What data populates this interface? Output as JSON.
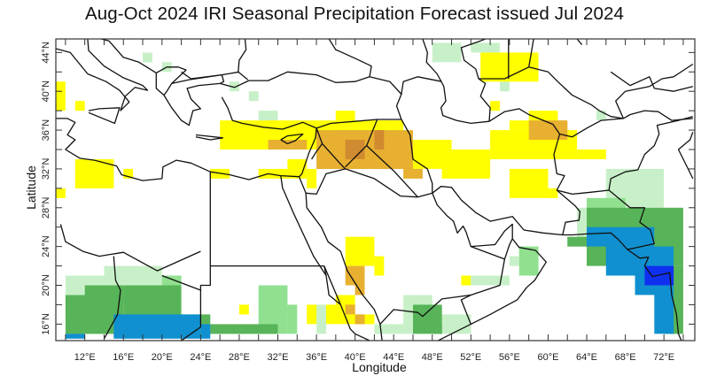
{
  "title": "Aug-Oct 2024 IRI Seasonal Precipitation Forecast issued Jul 2024",
  "chart_data": {
    "type": "heatmap",
    "title": "Aug-Oct 2024 IRI Seasonal Precipitation Forecast issued Jul 2024",
    "xlabel": "Longitude",
    "ylabel": "Latitude",
    "xlim": [
      9,
      75.2
    ],
    "ylim": [
      14.3,
      45.4
    ],
    "x_ticks": [
      12,
      16,
      20,
      24,
      28,
      32,
      36,
      40,
      44,
      48,
      52,
      56,
      60,
      64,
      68,
      72
    ],
    "x_tick_labels": [
      "12°E",
      "16°E",
      "20°E",
      "24°E",
      "28°E",
      "32°E",
      "36°E",
      "40°E",
      "44°E",
      "48°E",
      "52°E",
      "56°E",
      "60°E",
      "64°E",
      "68°E",
      "72°E"
    ],
    "y_ticks": [
      16,
      20,
      24,
      28,
      32,
      36,
      40,
      44
    ],
    "y_tick_labels": [
      "16°N",
      "20°N",
      "24°N",
      "28°N",
      "32°N",
      "36°N",
      "40°N",
      "44°N"
    ],
    "categories": {
      "dry1": "#ffff00",
      "dry2": "#e8b030",
      "dry3": "#d08a30",
      "wet1": "#c8f0c8",
      "wet2": "#90e090",
      "wet3": "#58b458",
      "wet4": "#1090d0",
      "wet5": "#1030f0"
    },
    "cells": [
      [
        "wet1",
        18,
        19,
        43,
        44
      ],
      [
        "wet1",
        20,
        21,
        42,
        43
      ],
      [
        "wet1",
        27,
        28,
        40,
        41
      ],
      [
        "wet1",
        30,
        32,
        37,
        38
      ],
      [
        "wet1",
        29,
        30,
        39,
        40
      ],
      [
        "wet1",
        48,
        51,
        43,
        45
      ],
      [
        "wet1",
        52,
        55,
        44,
        45
      ],
      [
        "wet1",
        55,
        56,
        40,
        41
      ],
      [
        "wet1",
        65,
        66,
        37,
        38
      ],
      [
        "dry1",
        9,
        10,
        38,
        41
      ],
      [
        "dry1",
        11,
        12,
        38,
        39
      ],
      [
        "dry1",
        11,
        15,
        30,
        33
      ],
      [
        "dry1",
        9,
        10,
        29,
        30
      ],
      [
        "dry1",
        16,
        17,
        31,
        32
      ],
      [
        "dry1",
        25,
        27,
        31,
        32
      ],
      [
        "dry1",
        30,
        33,
        31,
        32
      ],
      [
        "dry1",
        53,
        59,
        41,
        44
      ],
      [
        "dry1",
        54,
        55,
        38,
        39
      ],
      [
        "dry1",
        26,
        45,
        34,
        37
      ],
      [
        "dry1",
        38,
        40,
        37,
        38
      ],
      [
        "dry1",
        45,
        50,
        32,
        35
      ],
      [
        "dry1",
        49,
        54,
        31,
        34
      ],
      [
        "dry1",
        54,
        63,
        33,
        36
      ],
      [
        "dry1",
        56,
        61,
        36,
        37
      ],
      [
        "dry1",
        58,
        61,
        37,
        38
      ],
      [
        "dry1",
        63,
        66,
        33,
        34
      ],
      [
        "dry1",
        56,
        60,
        29,
        32
      ],
      [
        "dry1",
        60,
        61,
        29,
        30
      ],
      [
        "dry1",
        33,
        35,
        31,
        33
      ],
      [
        "dry1",
        35,
        36,
        30,
        32
      ],
      [
        "dry2",
        31,
        35,
        34,
        35
      ],
      [
        "dry2",
        36,
        46,
        32,
        36
      ],
      [
        "dry2",
        45,
        47,
        31,
        32
      ],
      [
        "dry2",
        38,
        41,
        34,
        36
      ],
      [
        "dry2",
        58,
        62,
        35,
        37
      ],
      [
        "dry3",
        39,
        41,
        33,
        35
      ],
      [
        "dry3",
        42,
        43,
        34,
        36
      ],
      [
        "dry1",
        39,
        42,
        22,
        25
      ],
      [
        "dry1",
        42,
        43,
        21,
        23
      ],
      [
        "dry1",
        38,
        40,
        18,
        19
      ],
      [
        "dry1",
        35,
        40,
        16,
        18
      ],
      [
        "dry1",
        40,
        42,
        16,
        17
      ],
      [
        "dry1",
        51,
        52,
        20,
        21
      ],
      [
        "dry1",
        28,
        29,
        17,
        18
      ],
      [
        "dry2",
        39,
        41,
        20,
        22
      ],
      [
        "dry2",
        40,
        41,
        19,
        20
      ],
      [
        "dry2",
        39,
        40,
        17,
        18
      ],
      [
        "dry2",
        40,
        41,
        16,
        17
      ],
      [
        "wet1",
        52,
        56,
        20,
        21
      ],
      [
        "wet1",
        56,
        57,
        22,
        23
      ],
      [
        "wet1",
        45,
        48,
        15,
        19
      ],
      [
        "wet1",
        48,
        52,
        15,
        17
      ],
      [
        "wet2",
        30,
        33,
        15,
        20
      ],
      [
        "wet2",
        33,
        34,
        15,
        18
      ],
      [
        "wet1",
        36,
        37,
        15,
        18
      ],
      [
        "wet1",
        42,
        45,
        15,
        16
      ],
      [
        "wet3",
        46,
        49,
        15,
        18
      ],
      [
        "wet3",
        48,
        49,
        15,
        16
      ],
      [
        "wet1",
        10,
        14,
        17,
        21
      ],
      [
        "wet2",
        10,
        12,
        17,
        19
      ],
      [
        "wet1",
        14,
        20,
        20,
        22
      ],
      [
        "wet2",
        20,
        22,
        17,
        21
      ],
      [
        "wet3",
        10,
        16,
        15,
        19
      ],
      [
        "wet3",
        12,
        16,
        18,
        20
      ],
      [
        "wet3",
        16,
        22,
        15,
        20
      ],
      [
        "wet3",
        22,
        25,
        15,
        17
      ],
      [
        "wet3",
        25,
        32,
        15,
        16
      ],
      [
        "wet4",
        10,
        12,
        14.5,
        15
      ],
      [
        "wet4",
        15,
        24,
        14.5,
        17
      ],
      [
        "wet4",
        24,
        25,
        14.5,
        16
      ],
      [
        "wet1",
        66,
        72,
        28,
        32
      ],
      [
        "wet1",
        63,
        66,
        24,
        28
      ],
      [
        "wet2",
        64,
        68,
        26,
        29
      ],
      [
        "wet3",
        64,
        74,
        22,
        28
      ],
      [
        "wet3",
        72,
        74,
        15,
        22
      ],
      [
        "wet3",
        62,
        64,
        24,
        25
      ],
      [
        "wet2",
        57,
        59,
        21,
        24
      ],
      [
        "wet2",
        57,
        58,
        23,
        24
      ],
      [
        "wet4",
        64,
        71,
        24,
        26
      ],
      [
        "wet4",
        66,
        73,
        21,
        24
      ],
      [
        "wet4",
        69,
        72,
        19,
        21
      ],
      [
        "wet4",
        71,
        73,
        15,
        21
      ],
      [
        "wet5",
        70,
        73,
        20,
        22
      ]
    ]
  }
}
